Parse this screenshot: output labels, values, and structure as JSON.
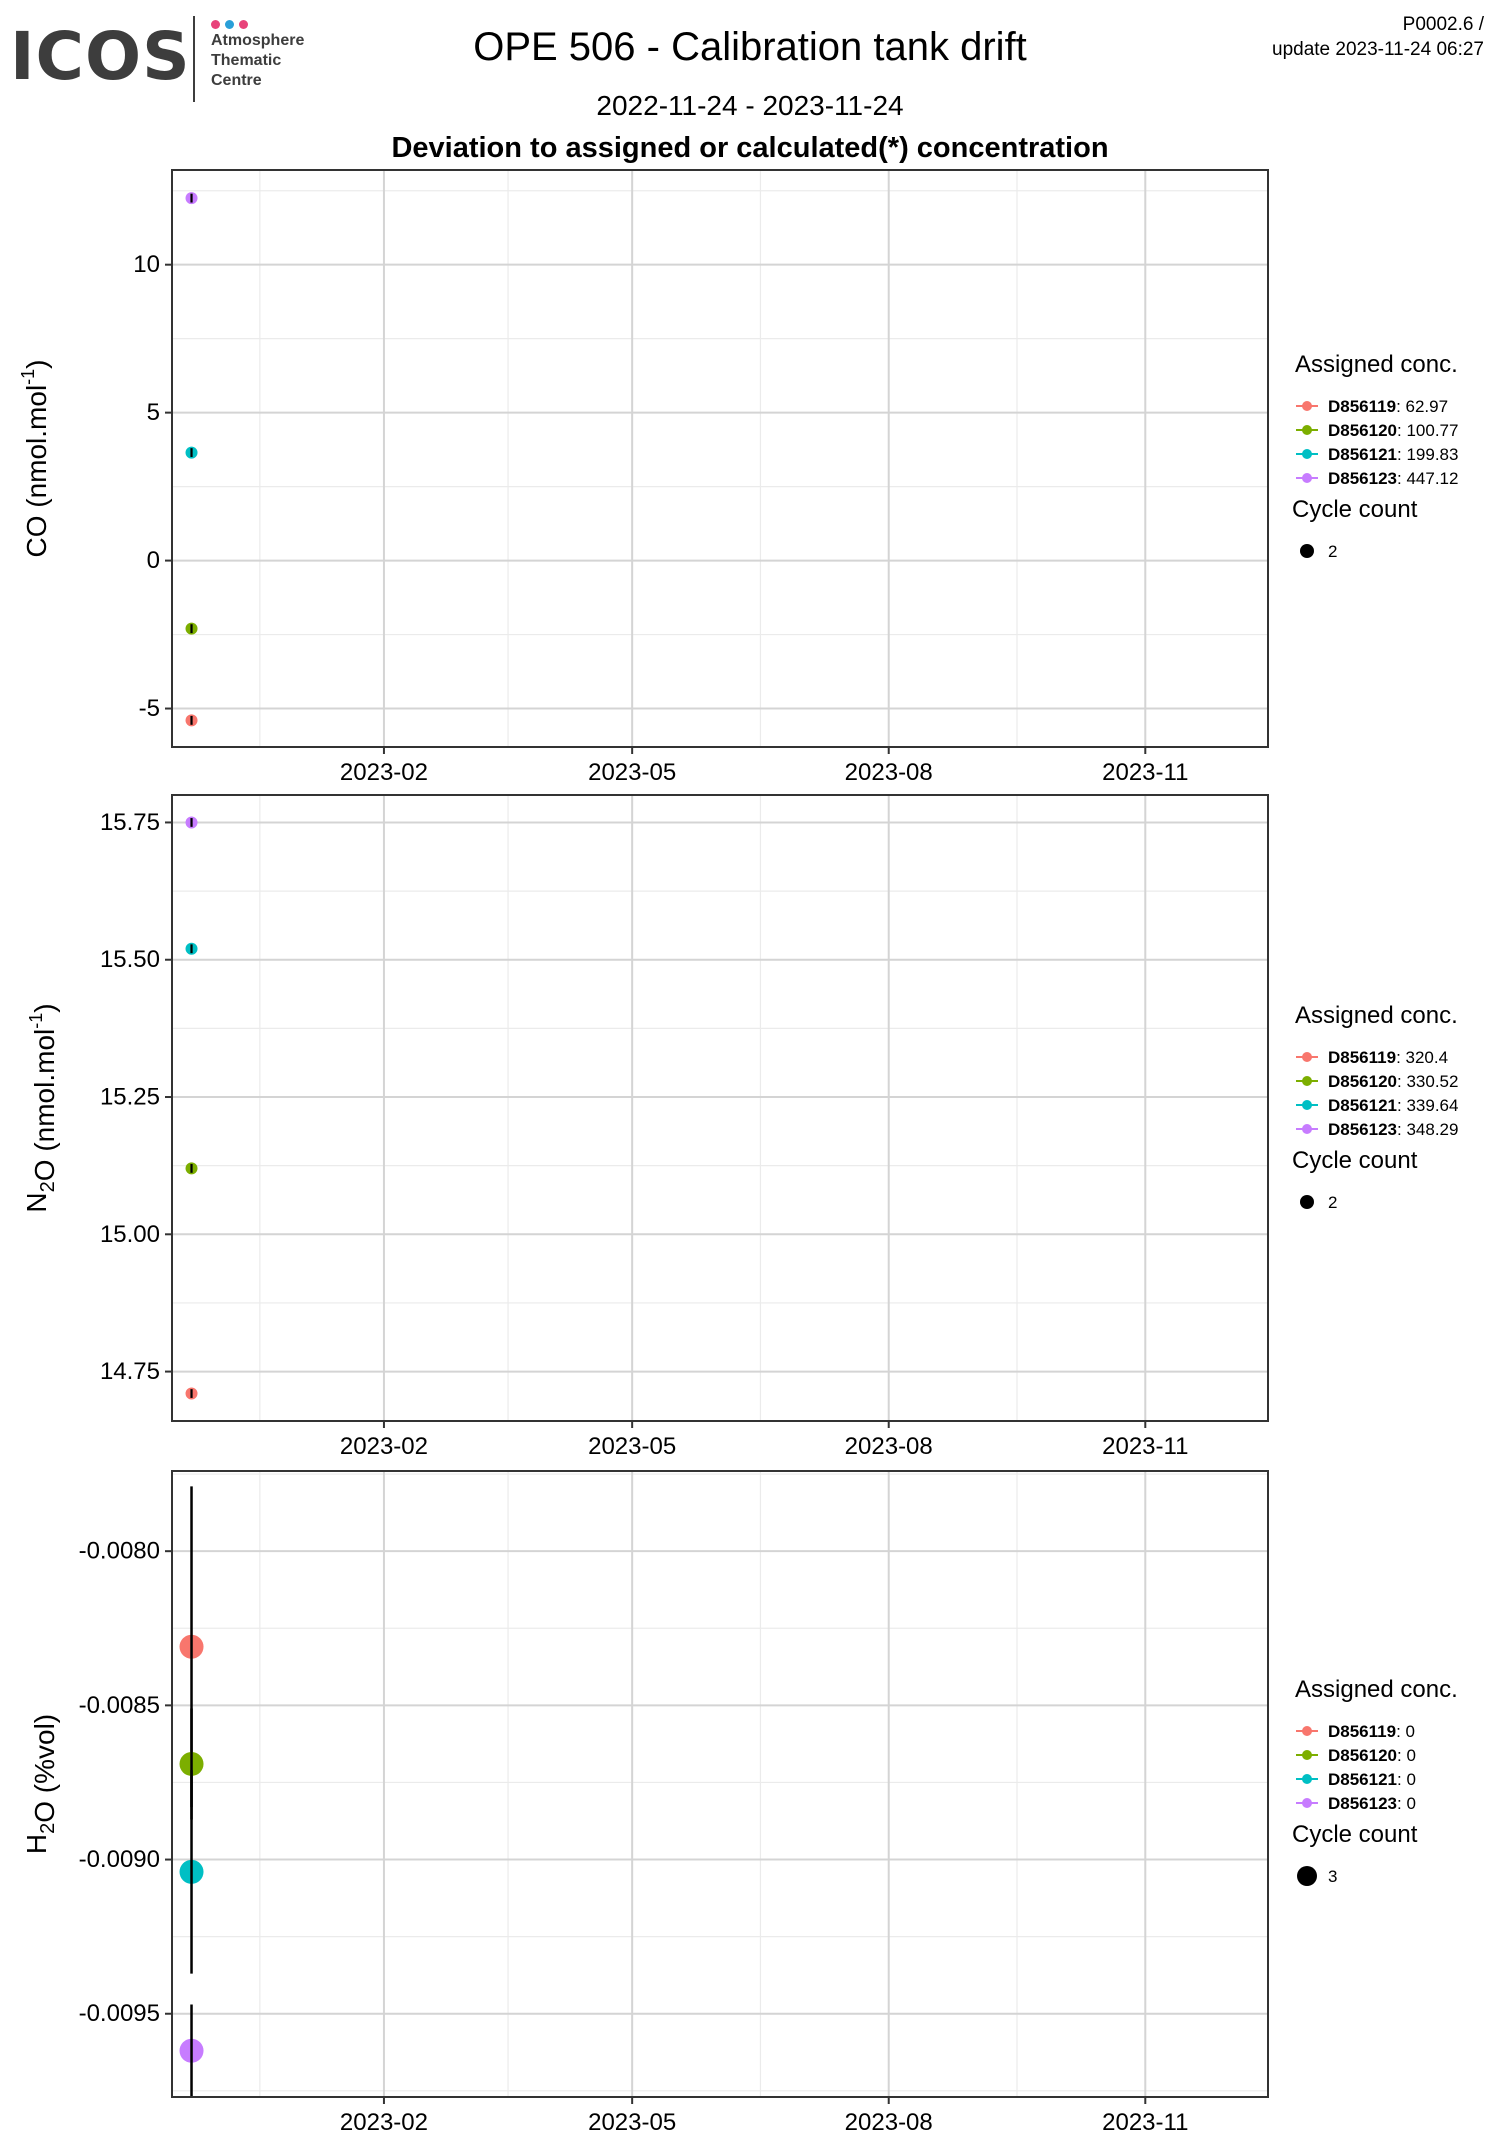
{
  "header": {
    "logo_text": "ICOS",
    "logo_lines": [
      "Atmosphere",
      "Thematic",
      "Centre"
    ],
    "logo_dot_colors": [
      "#e8437a",
      "#2a9fd8",
      "#e8437a"
    ],
    "title": "OPE 506 - Calibration tank drift",
    "period": "2022-11-24 - 2023-11-24",
    "subtitle": "Deviation to assigned or calculated(*) concentration",
    "version": "P0002.6 /",
    "update": "update  2023-11-24 06:27"
  },
  "colors": {
    "D856119": "#f8766d",
    "D856120": "#7cae00",
    "D856121": "#00bfc4",
    "D856123": "#c77cff"
  },
  "chart_data": [
    {
      "type": "scatter",
      "ylabel_base": "CO (nmol.mol",
      "ylabel_sup": "-1",
      "ylabel_end": ")",
      "xlim": [
        "2022-11-17",
        "2023-12-15"
      ],
      "ylim": [
        -6.3,
        13.2
      ],
      "yticks": [
        -5,
        0,
        5,
        10
      ],
      "ytick_labels": [
        "-5",
        "0",
        "5",
        "10"
      ],
      "xticks": [
        "2023-02-01",
        "2023-05-01",
        "2023-08-01",
        "2023-11-01"
      ],
      "xtick_labels": [
        "2023-02",
        "2023-05",
        "2023-08",
        "2023-11"
      ],
      "legend_title": "Assigned conc.",
      "size_title": "Cycle count",
      "size_value": "2",
      "series": [
        {
          "name": "D856119",
          "assigned": "62.97",
          "x": "2022-11-24",
          "y": -5.4,
          "err": 0.15
        },
        {
          "name": "D856120",
          "assigned": "100.77",
          "x": "2022-11-24",
          "y": -2.3,
          "err": 0.15
        },
        {
          "name": "D856121",
          "assigned": "199.83",
          "x": "2022-11-24",
          "y": 3.65,
          "err": 0.15
        },
        {
          "name": "D856123",
          "assigned": "447.12",
          "x": "2022-11-24",
          "y": 12.25,
          "err": 0.15
        }
      ]
    },
    {
      "type": "scatter",
      "ylabel_pre": "N",
      "ylabel_sub": "2",
      "ylabel_base": "O (nmol.mol",
      "ylabel_sup": "-1",
      "ylabel_end": ")",
      "xlim": [
        "2022-11-17",
        "2023-12-15"
      ],
      "ylim": [
        14.66,
        15.8
      ],
      "yticks": [
        14.75,
        15.0,
        15.25,
        15.5,
        15.75
      ],
      "ytick_labels": [
        "14.75",
        "15.00",
        "15.25",
        "15.50",
        "15.75"
      ],
      "xticks": [
        "2023-02-01",
        "2023-05-01",
        "2023-08-01",
        "2023-11-01"
      ],
      "xtick_labels": [
        "2023-02",
        "2023-05",
        "2023-08",
        "2023-11"
      ],
      "legend_title": "Assigned conc.",
      "size_title": "Cycle count",
      "size_value": "2",
      "series": [
        {
          "name": "D856119",
          "assigned": "320.4",
          "x": "2022-11-24",
          "y": 14.71,
          "err": 0.008
        },
        {
          "name": "D856120",
          "assigned": "330.52",
          "x": "2022-11-24",
          "y": 15.12,
          "err": 0.008
        },
        {
          "name": "D856121",
          "assigned": "339.64",
          "x": "2022-11-24",
          "y": 15.52,
          "err": 0.008
        },
        {
          "name": "D856123",
          "assigned": "348.29",
          "x": "2022-11-24",
          "y": 15.75,
          "err": 0.008
        }
      ]
    },
    {
      "type": "scatter",
      "ylabel_pre": "H",
      "ylabel_sub": "2",
      "ylabel_base": "O (%vol)",
      "xlim": [
        "2022-11-17",
        "2023-12-15"
      ],
      "ylim": [
        -0.00977,
        -0.00774
      ],
      "yticks": [
        -0.0095,
        -0.009,
        -0.0085,
        -0.008
      ],
      "ytick_labels": [
        "-0.0095",
        "-0.0090",
        "-0.0085",
        "-0.0080"
      ],
      "xticks": [
        "2023-02-01",
        "2023-05-01",
        "2023-08-01",
        "2023-11-01"
      ],
      "xtick_labels": [
        "2023-02",
        "2023-05",
        "2023-08",
        "2023-11"
      ],
      "legend_title": "Assigned conc.",
      "size_title": "Cycle count",
      "size_value": "3",
      "series": [
        {
          "name": "D856119",
          "assigned": "0",
          "x": "2022-11-24",
          "y": -0.00831,
          "err": 0.00052
        },
        {
          "name": "D856120",
          "assigned": "0",
          "x": "2022-11-24",
          "y": -0.00869,
          "err": 0.00018
        },
        {
          "name": "D856121",
          "assigned": "0",
          "x": "2022-11-24",
          "y": -0.00904,
          "err": 0.00033
        },
        {
          "name": "D856123",
          "assigned": "0",
          "x": "2022-11-24",
          "y": -0.00962,
          "err": 0.00015
        }
      ]
    }
  ]
}
